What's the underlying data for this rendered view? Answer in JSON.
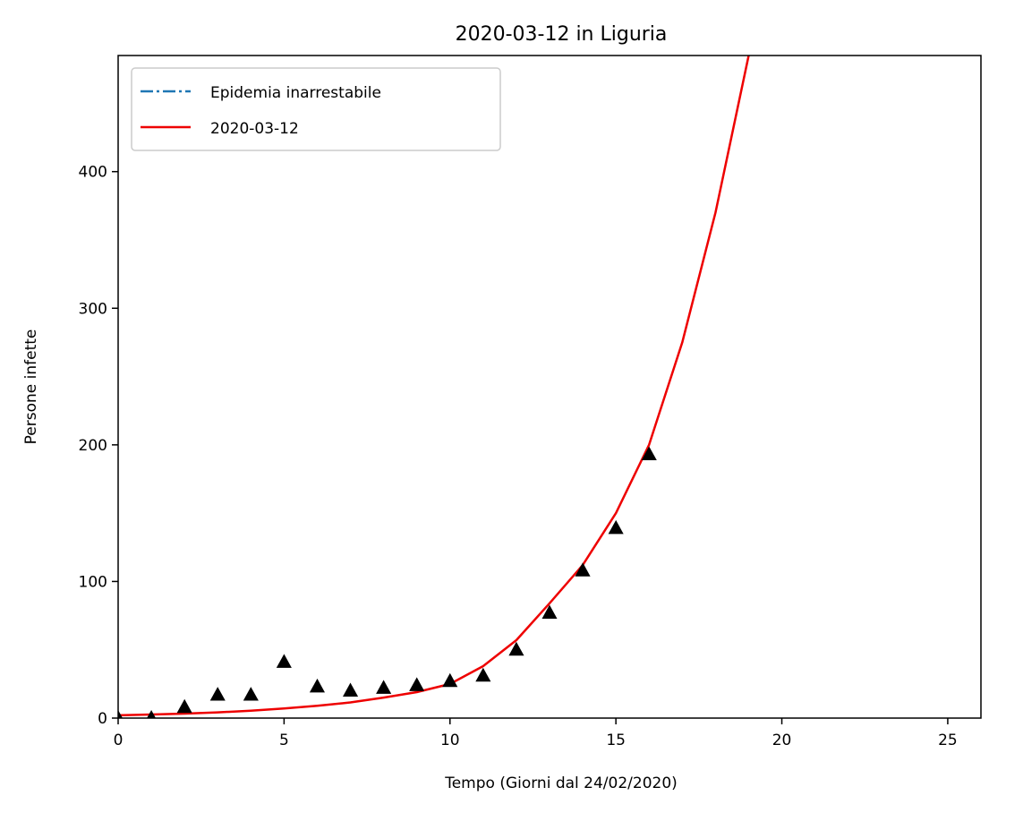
{
  "chart_data": {
    "type": "line",
    "title": "2020-03-12 in Liguria",
    "xlabel": "Tempo (Giorni dal 24/02/2020)",
    "ylabel": "Persone infette",
    "xlim": [
      0,
      26
    ],
    "ylim": [
      0,
      485
    ],
    "xticks": [
      0,
      5,
      10,
      15,
      20,
      25
    ],
    "yticks": [
      0,
      100,
      200,
      300,
      400
    ],
    "grid": false,
    "legend_position": "top-left",
    "series": [
      {
        "name": "Epidemia inarrestabile",
        "kind": "line",
        "style": "dash-dot",
        "color": "#1f77b4",
        "x": [],
        "y": []
      },
      {
        "name": "2020-03-12",
        "kind": "line",
        "style": "solid",
        "color": "#ee0000",
        "x": [
          0,
          1,
          2,
          3,
          4,
          5,
          6,
          7,
          8,
          9,
          10,
          11,
          12,
          13,
          14,
          15,
          16,
          17,
          18,
          19
        ],
        "y": [
          2,
          2.6,
          3.3,
          4.2,
          5.4,
          7,
          9,
          11.5,
          15,
          19,
          25,
          38,
          57,
          84,
          112,
          150,
          200,
          275,
          370,
          485
        ]
      },
      {
        "kind": "scatter",
        "marker": "triangle",
        "color": "#000000",
        "x": [
          0,
          1,
          2,
          3,
          4,
          5,
          6,
          7,
          8,
          9,
          10,
          11,
          12,
          13,
          14,
          15,
          16
        ],
        "y": [
          0,
          0,
          8,
          17,
          17,
          41,
          23,
          20,
          22,
          24,
          27,
          31,
          50,
          77,
          108,
          139,
          193
        ]
      }
    ]
  }
}
